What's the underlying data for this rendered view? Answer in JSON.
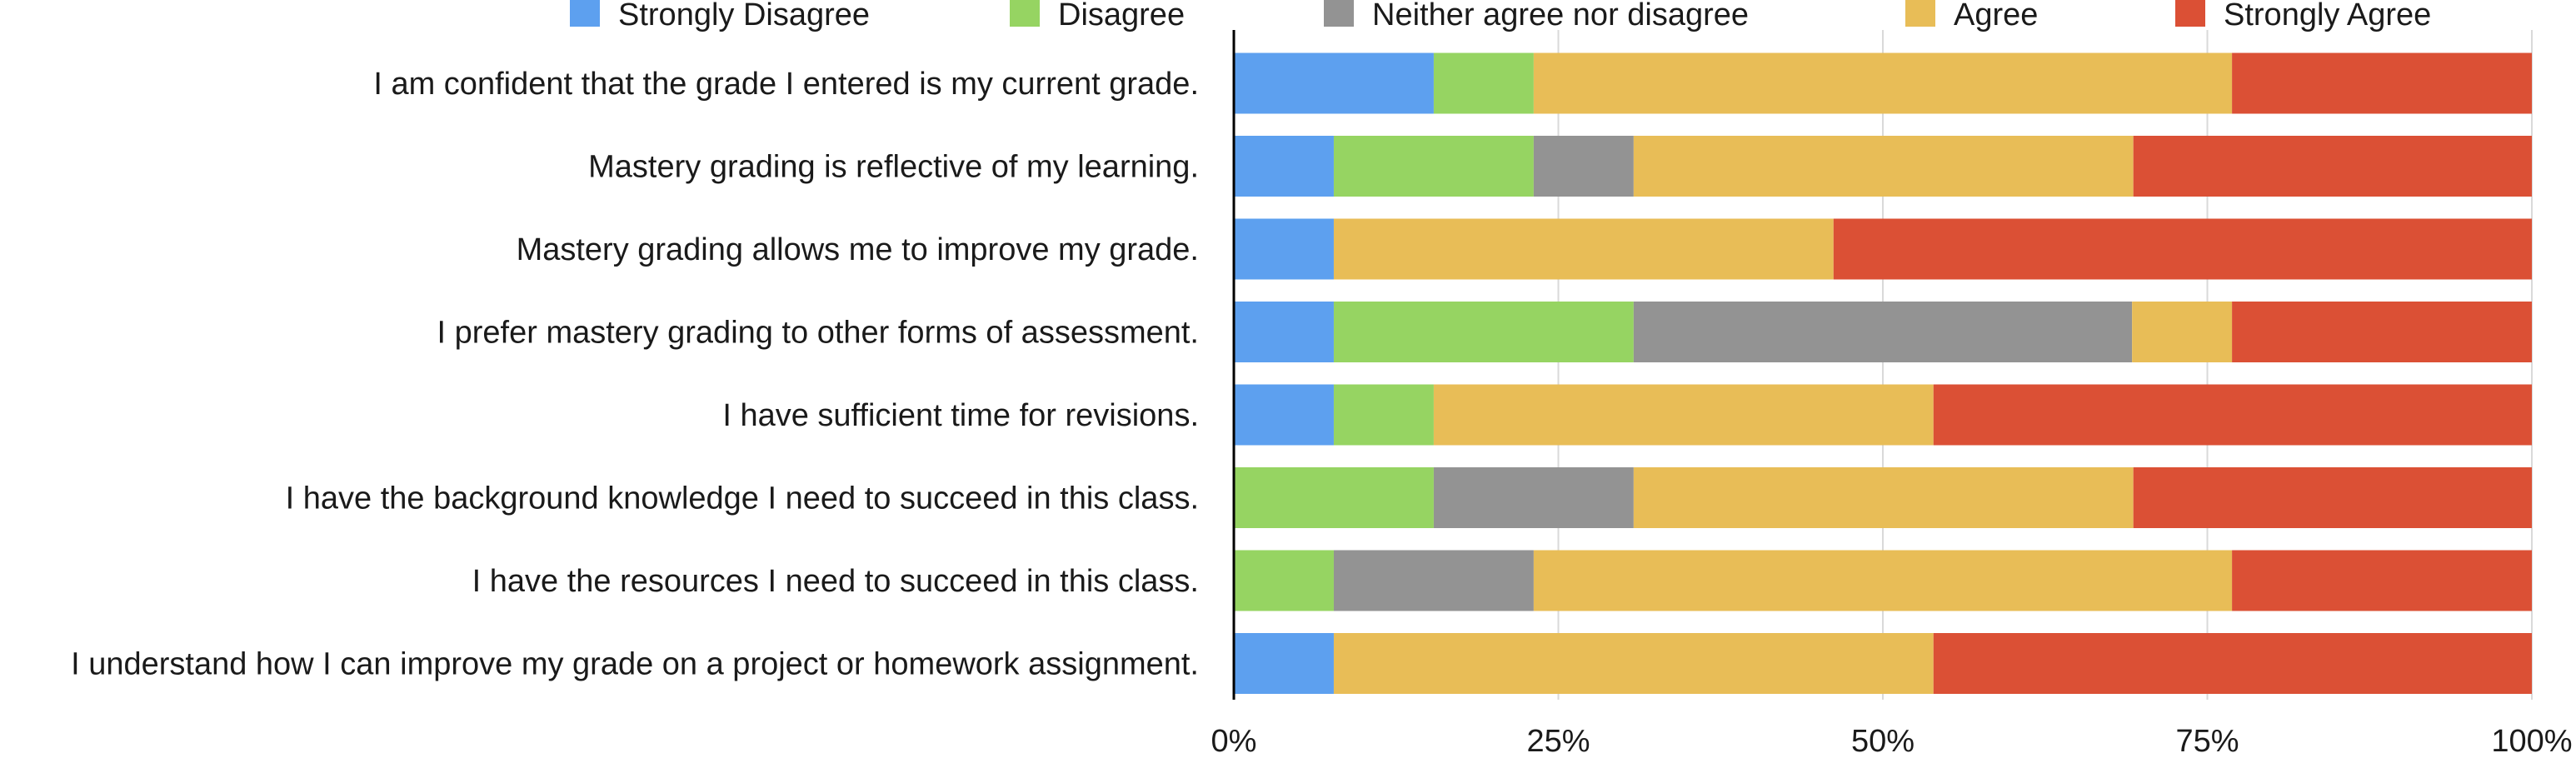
{
  "chart_data": {
    "type": "bar",
    "orientation": "horizontal",
    "stacked": true,
    "percent_stacked": true,
    "categories": [
      "I am confident that the grade I entered is my current grade.",
      "Mastery grading is reflective of my learning.",
      "Mastery grading allows me to improve my grade.",
      "I prefer mastery grading to other forms of assessment.",
      "I have sufficient time for revisions.",
      "I have the background knowledge I need to succeed in this class.",
      "I have the resources I need to succeed in this class.",
      "I understand how I can improve my grade on a project or homework assignment."
    ],
    "series": [
      {
        "name": "Strongly Disagree",
        "color": "#5DA0EF",
        "values": [
          15.4,
          7.7,
          7.7,
          7.7,
          7.7,
          0,
          0,
          7.7
        ]
      },
      {
        "name": "Disagree",
        "color": "#96D462",
        "values": [
          7.7,
          15.4,
          0,
          23.1,
          7.7,
          15.4,
          7.7,
          0
        ]
      },
      {
        "name": "Neither agree nor disagree",
        "color": "#939393",
        "values": [
          0,
          7.7,
          0,
          38.4,
          0,
          15.4,
          15.4,
          0
        ]
      },
      {
        "name": "Agree",
        "color": "#E8BD57",
        "values": [
          53.8,
          38.5,
          38.5,
          7.7,
          38.5,
          38.5,
          53.8,
          46.2
        ]
      },
      {
        "name": "Strongly Agree",
        "color": "#DB5035",
        "values": [
          23.1,
          30.7,
          53.8,
          23.1,
          46.1,
          30.7,
          23.1,
          46.1
        ]
      }
    ],
    "xlim": [
      0,
      100
    ],
    "xticks": [
      "0%",
      "25%",
      "50%",
      "75%",
      "100%"
    ],
    "xlabel": "",
    "ylabel": "",
    "title": "",
    "grid": true,
    "legend_position": "top"
  }
}
